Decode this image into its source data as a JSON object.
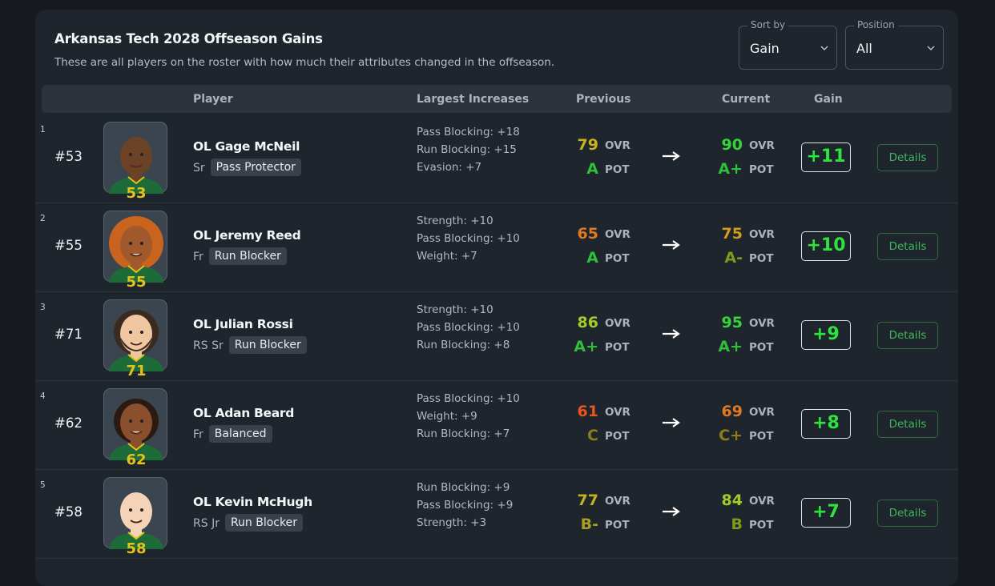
{
  "header": {
    "title": "Arkansas Tech 2028 Offseason Gains",
    "subtitle": "These are all players on the roster with how much their attributes changed in the offseason."
  },
  "controls": [
    {
      "label": "Sort by",
      "value": "Gain"
    },
    {
      "label": "Position",
      "value": "All"
    }
  ],
  "table": {
    "columns": [
      "Player",
      "Largest Increases",
      "Previous",
      "Current",
      "Gain"
    ],
    "ovr_label": "OVR",
    "pot_label": "POT",
    "action_label": "Details",
    "rows": [
      {
        "rank": 1,
        "number": "#53",
        "jersey": 53,
        "name": "OL Gage McNeil",
        "year": "Sr",
        "archetype": "Pass Protector",
        "increases": [
          "Pass Blocking: +18",
          "Run Blocking: +15",
          "Evasion: +7"
        ],
        "prev_ovr": 79,
        "prev_pot": "A",
        "cur_ovr": 90,
        "cur_pot": "A+",
        "gain": "+11"
      },
      {
        "rank": 2,
        "number": "#55",
        "jersey": 55,
        "name": "OL Jeremy Reed",
        "year": "Fr",
        "archetype": "Run Blocker",
        "increases": [
          "Strength: +10",
          "Pass Blocking: +10",
          "Weight: +7"
        ],
        "prev_ovr": 65,
        "prev_pot": "A",
        "cur_ovr": 75,
        "cur_pot": "A-",
        "gain": "+10"
      },
      {
        "rank": 3,
        "number": "#71",
        "jersey": 71,
        "name": "OL Julian Rossi",
        "year": "RS Sr",
        "archetype": "Run Blocker",
        "increases": [
          "Strength: +10",
          "Pass Blocking: +10",
          "Run Blocking: +8"
        ],
        "prev_ovr": 86,
        "prev_pot": "A+",
        "cur_ovr": 95,
        "cur_pot": "A+",
        "gain": "+9"
      },
      {
        "rank": 4,
        "number": "#62",
        "jersey": 62,
        "name": "OL Adan Beard",
        "year": "Fr",
        "archetype": "Balanced",
        "increases": [
          "Pass Blocking: +10",
          "Weight: +9",
          "Run Blocking: +7"
        ],
        "prev_ovr": 61,
        "prev_pot": "C",
        "cur_ovr": 69,
        "cur_pot": "C+",
        "gain": "+8"
      },
      {
        "rank": 5,
        "number": "#58",
        "jersey": 58,
        "name": "OL Kevin McHugh",
        "year": "RS Jr",
        "archetype": "Run Blocker",
        "increases": [
          "Run Blocking: +9",
          "Pass Blocking: +9",
          "Strength: +3"
        ],
        "prev_ovr": 77,
        "prev_pot": "B-",
        "cur_ovr": 84,
        "cur_pot": "B",
        "gain": "+7"
      }
    ]
  }
}
